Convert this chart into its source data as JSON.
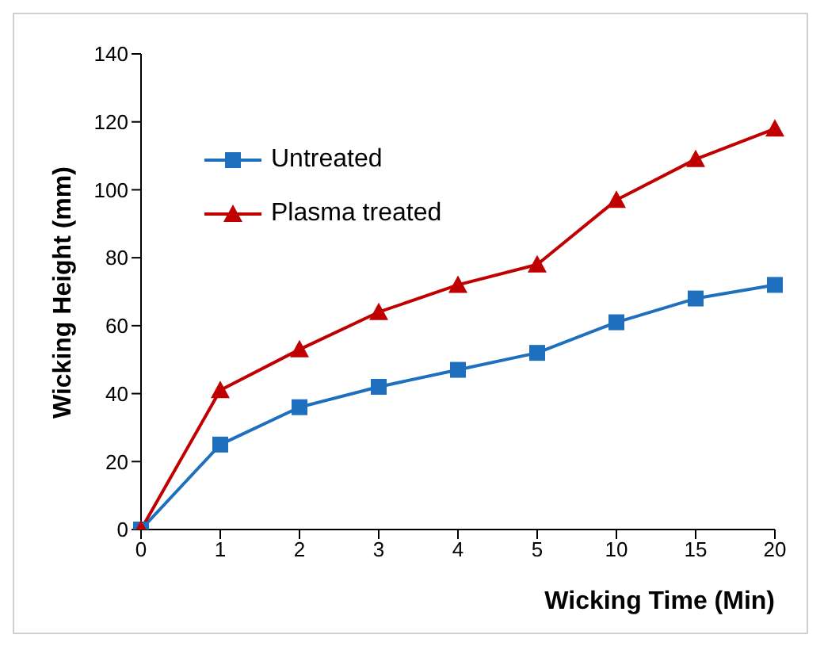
{
  "chart_data": {
    "type": "line",
    "xlabel": "Wicking Time (Min)",
    "ylabel": "Wicking Height (mm)",
    "categories": [
      "0",
      "1",
      "2",
      "3",
      "4",
      "5",
      "10",
      "15",
      "20"
    ],
    "series": [
      {
        "name": "Untreated",
        "color": "#1f6fbf",
        "marker": "square",
        "values": [
          0,
          25,
          36,
          42,
          47,
          52,
          61,
          68,
          72
        ]
      },
      {
        "name": "Plasma treated",
        "color": "#c00000",
        "marker": "triangle",
        "values": [
          0,
          41,
          53,
          64,
          72,
          78,
          97,
          109,
          118
        ]
      }
    ],
    "ylim": [
      0,
      140
    ],
    "yticks": [
      0,
      20,
      40,
      60,
      80,
      100,
      120,
      140
    ],
    "grid": false,
    "legend": "top left"
  }
}
